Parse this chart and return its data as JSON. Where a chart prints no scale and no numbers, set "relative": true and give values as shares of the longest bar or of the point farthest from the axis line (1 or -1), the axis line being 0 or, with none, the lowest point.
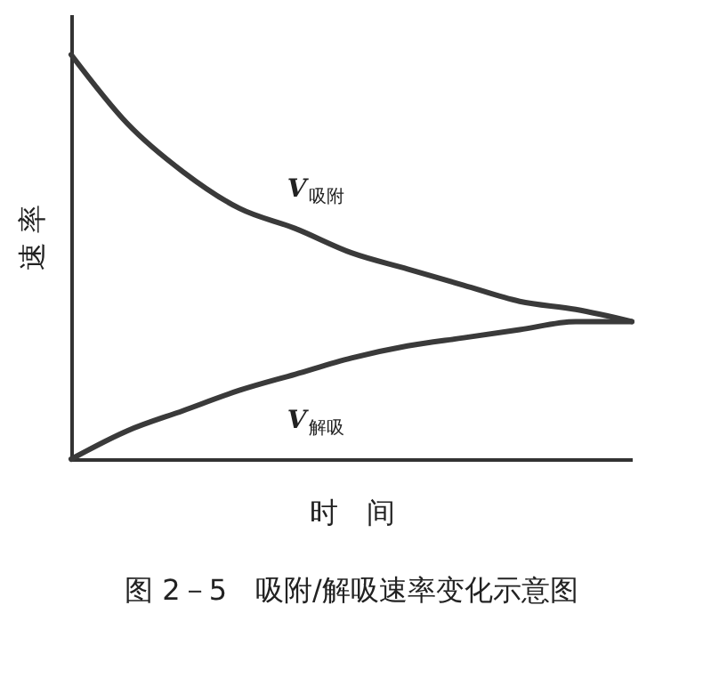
{
  "chart_data": {
    "type": "line",
    "title": "图 2－5　吸附/解吸速率变化示意图",
    "xlabel": "时　间",
    "ylabel": "速 率",
    "relative": true,
    "legend": false,
    "grid": false,
    "marker": "none",
    "line_style": "solid",
    "categories": [
      null,
      null,
      null,
      null,
      null,
      null,
      null,
      null,
      null,
      null,
      null
    ],
    "series": [
      {
        "name": "V$_{吸附}$",
        "color": "#3a3a3a",
        "values": [
          1,
          0.83,
          0.71,
          0.62,
          0.57,
          0.51,
          0.47,
          0.43,
          0.39,
          0.37,
          0.34
        ]
      },
      {
        "name": "V$_{解吸}$",
        "color": "#3a3a3a",
        "values": [
          0,
          0.07,
          0.12,
          0.17,
          0.21,
          0.25,
          0.28,
          0.3,
          0.32,
          0.34,
          0.34
        ]
      }
    ]
  }
}
